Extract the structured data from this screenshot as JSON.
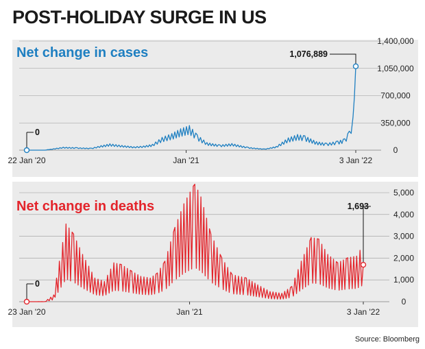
{
  "headline": "POST-HOLIDAY SURGE IN US",
  "source": "Source: Bloomberg",
  "colors": {
    "cases": "#1e7fc1",
    "deaths": "#e3242b",
    "panel_bg": "#ebebeb",
    "grid": "#9a9a9a"
  },
  "chart_data": [
    {
      "type": "line",
      "title": "Net change in cases",
      "xlabel": "",
      "ylabel": "",
      "x_range": [
        "2020-01-22",
        "2022-01-03"
      ],
      "x_tick_labels": [
        "22 Jan '20",
        "Jan '21",
        "3 Jan '22"
      ],
      "ylim": [
        0,
        1400000
      ],
      "y_ticks": [
        0,
        350000,
        700000,
        1050000,
        1400000
      ],
      "y_tick_labels": [
        "0",
        "350,000",
        "700,000",
        "1,050,000",
        "1,400,000"
      ],
      "grid": true,
      "annotations": [
        {
          "x": "2020-01-22",
          "y": 0,
          "label": "0"
        },
        {
          "x": "2022-01-03",
          "y": 1076889,
          "label": "1,076,889"
        }
      ],
      "series": [
        {
          "values": [
            [
              "2020-01-22",
              0
            ],
            [
              "2020-03-01",
              100
            ],
            [
              "2020-03-20",
              15000
            ],
            [
              "2020-04-10",
              32000
            ],
            [
              "2020-05-10",
              26000
            ],
            [
              "2020-06-10",
              21000
            ],
            [
              "2020-07-01",
              48000
            ],
            [
              "2020-07-20",
              67000
            ],
            [
              "2020-08-15",
              50000
            ],
            [
              "2020-09-10",
              36000
            ],
            [
              "2020-10-01",
              44000
            ],
            [
              "2020-10-20",
              62000
            ],
            [
              "2020-11-10",
              135000
            ],
            [
              "2020-12-01",
              175000
            ],
            [
              "2020-12-20",
              225000
            ],
            [
              "2021-01-08",
              260000
            ],
            [
              "2021-01-25",
              160000
            ],
            [
              "2021-02-15",
              80000
            ],
            [
              "2021-03-15",
              55000
            ],
            [
              "2021-04-10",
              70000
            ],
            [
              "2021-05-15",
              30000
            ],
            [
              "2021-06-20",
              12000
            ],
            [
              "2021-07-15",
              40000
            ],
            [
              "2021-08-10",
              130000
            ],
            [
              "2021-08-30",
              165000
            ],
            [
              "2021-09-15",
              150000
            ],
            [
              "2021-10-10",
              90000
            ],
            [
              "2021-11-01",
              72000
            ],
            [
              "2021-11-25",
              95000
            ],
            [
              "2021-12-10",
              120000
            ],
            [
              "2021-12-20",
              200000
            ],
            [
              "2021-12-28",
              350000
            ],
            [
              "2021-12-31",
              560000
            ],
            [
              "2022-01-03",
              1076889
            ]
          ]
        }
      ]
    },
    {
      "type": "line",
      "title": "Net change in deaths",
      "xlabel": "",
      "ylabel": "",
      "x_range": [
        "2020-01-23",
        "2022-01-03"
      ],
      "x_tick_labels": [
        "23 Jan '20",
        "Jan '21",
        "3 Jan '22"
      ],
      "ylim": [
        0,
        5000
      ],
      "y_ticks": [
        0,
        1000,
        2000,
        3000,
        4000,
        5000
      ],
      "y_tick_labels": [
        "0",
        "1,000",
        "2,000",
        "3,000",
        "4,000",
        "5,000"
      ],
      "grid": true,
      "annotations": [
        {
          "x": "2020-01-23",
          "y": 0,
          "label": "0"
        },
        {
          "x": "2022-01-03",
          "y": 1693,
          "label": "1,693"
        }
      ],
      "series": [
        {
          "values": [
            [
              "2020-01-23",
              0
            ],
            [
              "2020-03-01",
              2
            ],
            [
              "2020-03-20",
              200
            ],
            [
              "2020-04-01",
              1200
            ],
            [
              "2020-04-15",
              2300
            ],
            [
              "2020-05-01",
              2000
            ],
            [
              "2020-05-20",
              1400
            ],
            [
              "2020-06-15",
              700
            ],
            [
              "2020-07-05",
              600
            ],
            [
              "2020-07-25",
              1150
            ],
            [
              "2020-08-10",
              1100
            ],
            [
              "2020-09-01",
              900
            ],
            [
              "2020-09-20",
              750
            ],
            [
              "2020-10-10",
              700
            ],
            [
              "2020-10-25",
              850
            ],
            [
              "2020-11-10",
              1200
            ],
            [
              "2020-12-01",
              2200
            ],
            [
              "2020-12-20",
              2900
            ],
            [
              "2021-01-12",
              3500
            ],
            [
              "2021-01-25",
              3100
            ],
            [
              "2021-02-15",
              2000
            ],
            [
              "2021-03-10",
              1300
            ],
            [
              "2021-04-01",
              800
            ],
            [
              "2021-05-01",
              700
            ],
            [
              "2021-05-25",
              500
            ],
            [
              "2021-06-20",
              300
            ],
            [
              "2021-07-15",
              250
            ],
            [
              "2021-08-05",
              450
            ],
            [
              "2021-08-25",
              1200
            ],
            [
              "2021-09-15",
              1900
            ],
            [
              "2021-10-01",
              1850
            ],
            [
              "2021-10-20",
              1400
            ],
            [
              "2021-11-10",
              1150
            ],
            [
              "2021-12-01",
              1300
            ],
            [
              "2021-12-20",
              1350
            ],
            [
              "2022-01-03",
              1693
            ]
          ]
        }
      ]
    }
  ]
}
